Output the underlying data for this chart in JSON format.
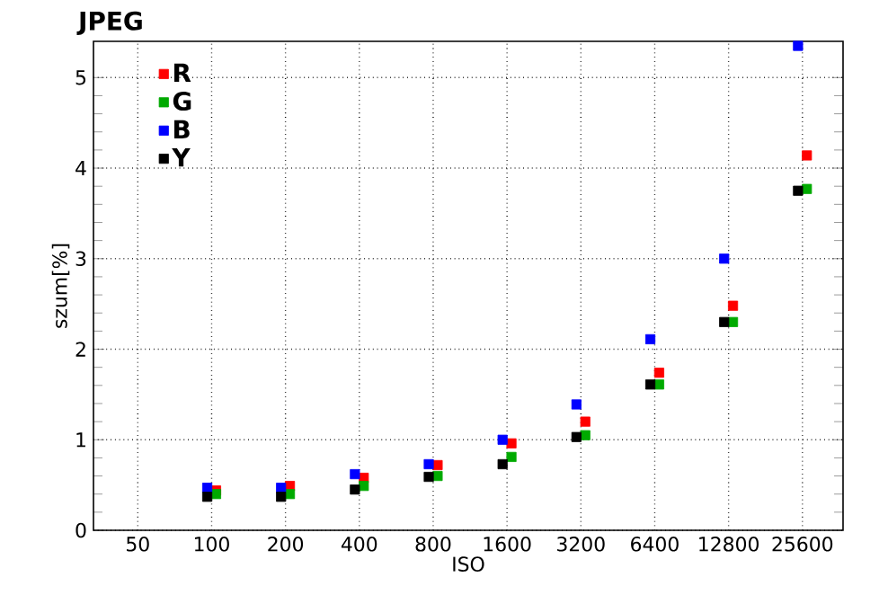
{
  "chart_data": {
    "type": "scatter",
    "title": "JPEG",
    "xlabel": "ISO",
    "ylabel": "szum[%]",
    "categories": [
      "50",
      "100",
      "200",
      "400",
      "800",
      "1600",
      "3200",
      "6400",
      "12800",
      "25600"
    ],
    "series": [
      {
        "name": "R",
        "color": "#ff0000",
        "values": [
          null,
          0.44,
          0.49,
          0.58,
          0.72,
          0.96,
          1.2,
          1.74,
          2.48,
          4.14
        ]
      },
      {
        "name": "G",
        "color": "#00aa00",
        "values": [
          null,
          0.4,
          0.4,
          0.49,
          0.6,
          0.81,
          1.05,
          1.61,
          2.3,
          3.77
        ]
      },
      {
        "name": "B",
        "color": "#0000ff",
        "values": [
          null,
          0.47,
          0.47,
          0.62,
          0.73,
          1.0,
          1.39,
          2.11,
          3.0,
          5.35
        ]
      },
      {
        "name": "Y",
        "color": "#000000",
        "values": [
          null,
          0.37,
          0.37,
          0.45,
          0.59,
          0.73,
          1.03,
          1.61,
          2.3,
          3.75
        ]
      }
    ],
    "ylim": [
      0,
      5.4
    ],
    "yticks": [
      0,
      1,
      2,
      3,
      4,
      5
    ],
    "grid": true,
    "legend": "top left",
    "marker": "square"
  }
}
